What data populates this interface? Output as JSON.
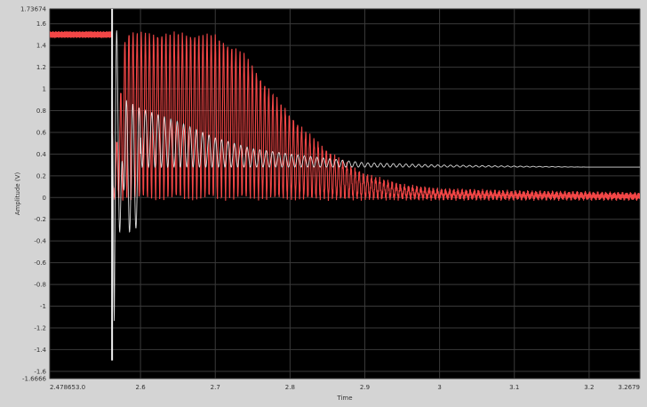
{
  "chart_data": {
    "type": "line",
    "title": "",
    "ylabel": "Amplitude (V)",
    "xlabel": "Time",
    "xlim": [
      2.478653,
      3.2679
    ],
    "ylim": [
      -1.6666,
      1.73674
    ],
    "x_ticks": [
      {
        "v": 2.478653,
        "label": "2.478653.0"
      },
      {
        "v": 2.6,
        "label": "2.6"
      },
      {
        "v": 2.7,
        "label": "2.7"
      },
      {
        "v": 2.8,
        "label": "2.8"
      },
      {
        "v": 2.9,
        "label": "2.9"
      },
      {
        "v": 3.0,
        "label": "3"
      },
      {
        "v": 3.1,
        "label": "3.1"
      },
      {
        "v": 3.2,
        "label": "3.2"
      },
      {
        "v": 3.2679,
        "label": "3.2679"
      }
    ],
    "y_ticks": [
      {
        "v": 1.73674,
        "label": "1.73674"
      },
      {
        "v": 1.6,
        "label": "1.6"
      },
      {
        "v": 1.4,
        "label": "1.4"
      },
      {
        "v": 1.2,
        "label": "1.2"
      },
      {
        "v": 1.0,
        "label": "1"
      },
      {
        "v": 0.8,
        "label": "0.8"
      },
      {
        "v": 0.6,
        "label": "0.6"
      },
      {
        "v": 0.4,
        "label": "0.4"
      },
      {
        "v": 0.2,
        "label": "0.2"
      },
      {
        "v": 0.0,
        "label": "0"
      },
      {
        "v": -0.2,
        "label": "-0.2"
      },
      {
        "v": -0.4,
        "label": "-0.4"
      },
      {
        "v": -0.6,
        "label": "-0.6"
      },
      {
        "v": -0.8,
        "label": "-0.8"
      },
      {
        "v": -1.0,
        "label": "-1"
      },
      {
        "v": -1.2,
        "label": "-1.2"
      },
      {
        "v": -1.4,
        "label": "-1.4"
      },
      {
        "v": -1.6,
        "label": "-1.6"
      },
      {
        "v": -1.6666,
        "label": "-1.6666"
      }
    ],
    "grid": true,
    "background": "#000000",
    "series": [
      {
        "color": "#ff4a4a",
        "points": [
          [
            2.478653,
            1.5
          ],
          [
            2.562,
            1.5
          ],
          [
            2.563,
            0.08
          ],
          [
            2.58,
            1.52
          ],
          [
            2.6,
            1.5
          ],
          [
            2.65,
            1.5
          ],
          [
            2.7,
            1.48
          ],
          [
            2.74,
            1.3
          ],
          [
            2.77,
            1.0
          ],
          [
            2.8,
            0.75
          ],
          [
            2.82,
            0.6
          ],
          [
            2.85,
            0.42
          ],
          [
            2.88,
            0.28
          ],
          [
            2.9,
            0.2
          ],
          [
            2.95,
            0.1
          ],
          [
            3.0,
            0.06
          ],
          [
            3.1,
            0.04
          ],
          [
            3.2,
            0.03
          ],
          [
            3.2679,
            0.02
          ]
        ]
      },
      {
        "color": "#e6e6e6",
        "points": [
          [
            2.562,
            1.6
          ],
          [
            2.565,
            -1.5
          ],
          [
            2.58,
            0.9
          ],
          [
            2.6,
            0.82
          ],
          [
            2.65,
            0.7
          ],
          [
            2.7,
            0.55
          ],
          [
            2.75,
            0.45
          ],
          [
            2.8,
            0.4
          ],
          [
            2.85,
            0.36
          ],
          [
            2.9,
            0.32
          ],
          [
            3.0,
            0.3
          ],
          [
            3.1,
            0.29
          ],
          [
            3.2,
            0.28
          ],
          [
            3.2679,
            0.28
          ]
        ]
      }
    ]
  }
}
